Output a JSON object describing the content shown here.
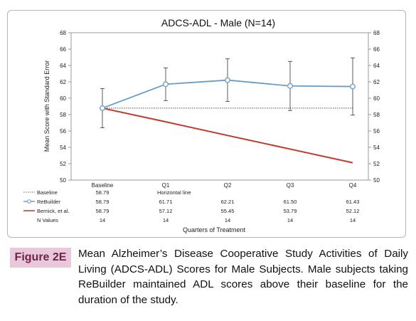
{
  "chart_data": {
    "type": "line",
    "title": "ADCS-ADL - Male (N=14)",
    "ylabel": "Mean Score with Standard Error",
    "xlabel": "Quarters of Treatment",
    "ylim": [
      50,
      68
    ],
    "y_ticks": [
      50,
      52,
      54,
      56,
      58,
      60,
      62,
      64,
      66,
      68
    ],
    "categories": [
      "Baseline",
      "Q1",
      "Q2",
      "Q3",
      "Q4"
    ],
    "series": [
      {
        "name": "Baseline",
        "values": [
          58.79,
          58.79,
          58.79,
          58.79,
          58.79
        ],
        "table_values": [
          "58.79",
          "Horizontal line",
          "",
          "",
          ""
        ],
        "color": "#333333",
        "style": "dotted"
      },
      {
        "name": "ReBuilder",
        "values": [
          58.79,
          61.71,
          62.21,
          61.5,
          61.43
        ],
        "table_values": [
          "58.79",
          "61.71",
          "62.21",
          "61.50",
          "61.43"
        ],
        "error": [
          2.4,
          2.0,
          2.6,
          3.0,
          3.5
        ],
        "color": "#6a9cc8",
        "style": "solid-marker"
      },
      {
        "name": "Bernick, et al.",
        "values": [
          58.79,
          57.12,
          55.45,
          53.79,
          52.12
        ],
        "table_values": [
          "58.79",
          "57.12",
          "55.45",
          "53.79",
          "52.12"
        ],
        "color": "#c0392b",
        "style": "solid"
      }
    ],
    "n_values": {
      "label": "N Values",
      "values": [
        "14",
        "14",
        "14",
        "14",
        "14"
      ]
    },
    "grid": false,
    "legend": "bottom-table"
  },
  "caption": {
    "label": "Figure 2E",
    "text": "Mean Alzheimer’s Disease Cooperative Study Activities of Daily Living (ADCS-ADL) Scores for Male Subjects. Male subjects taking ReBuilder maintained ADL scores above their baseline for the duration of the study."
  }
}
